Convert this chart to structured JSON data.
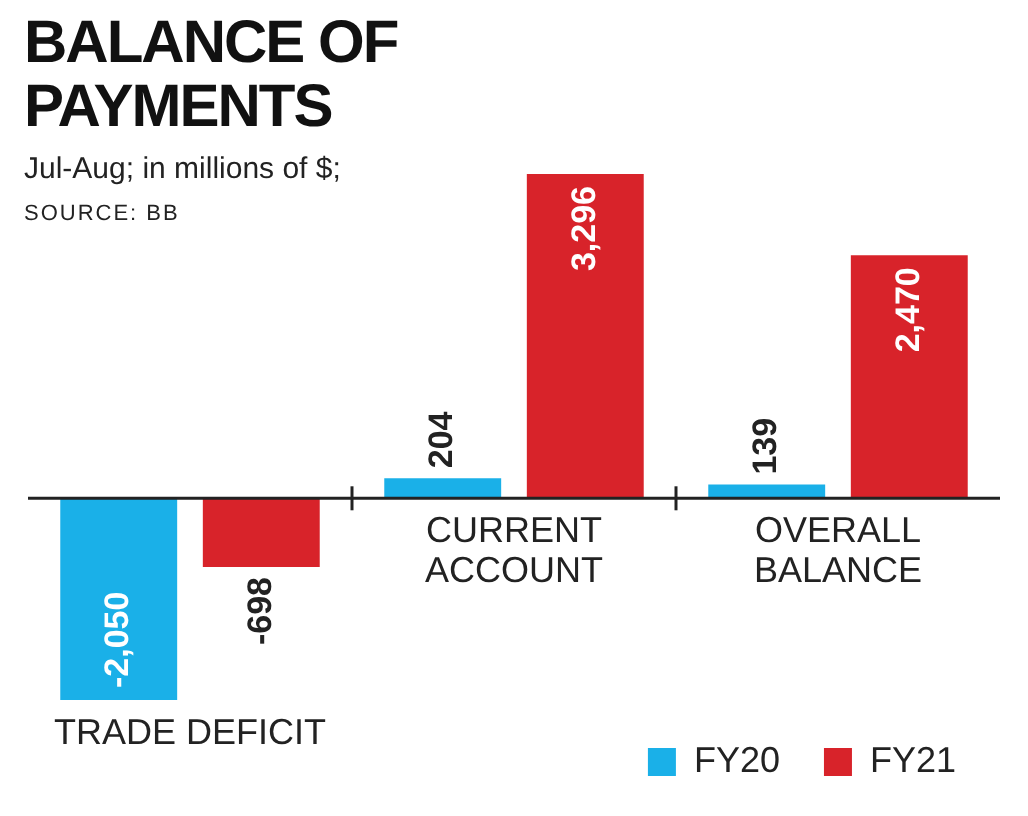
{
  "chart_data": {
    "type": "bar",
    "title": "BALANCE OF PAYMENTS",
    "subtitle": "Jul-Aug; in millions of $;",
    "annotations": [
      "SOURCE: BB"
    ],
    "categories": [
      "TRADE DEFICIT",
      "CURRENT ACCOUNT",
      "OVERALL BALANCE"
    ],
    "series": [
      {
        "name": "FY20",
        "color": "#1ab0e8",
        "values": [
          -2050,
          204,
          139
        ],
        "value_labels": [
          "-2,050",
          "204",
          "139"
        ]
      },
      {
        "name": "FY21",
        "color": "#d8232a",
        "values": [
          -698,
          3296,
          2470
        ],
        "value_labels": [
          "-698",
          "3,296",
          "2,470"
        ]
      }
    ],
    "legend": "bottom right"
  }
}
